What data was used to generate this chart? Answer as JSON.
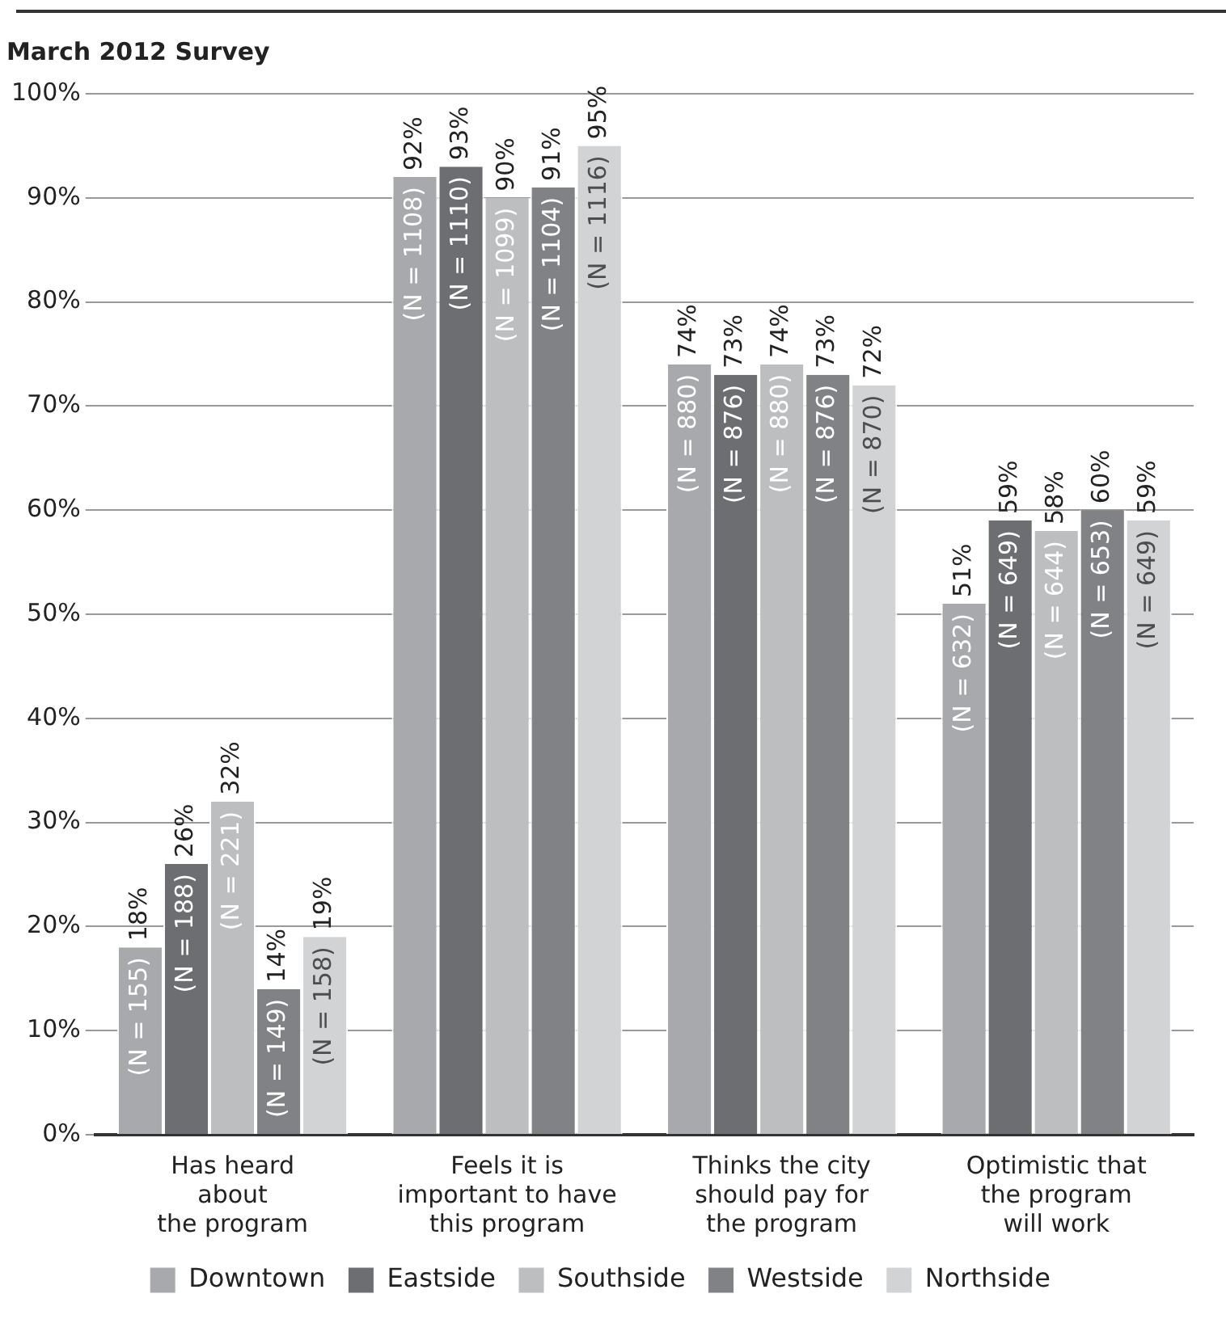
{
  "chart_data": {
    "type": "bar",
    "title": "March 2012 Survey",
    "categories": [
      "Has heard\nabout\nthe program",
      "Feels it is\nimportant to have\nthis program",
      "Thinks the city\nshould pay for\nthe program",
      "Optimistic that\nthe program\nwill work"
    ],
    "series": [
      {
        "name": "Downtown",
        "color": "#a7a9ac",
        "values": [
          18,
          92,
          74,
          51
        ],
        "value_labels": [
          "18%",
          "92%",
          "74%",
          "51%"
        ]
      },
      {
        "name": "Eastside",
        "color": "#6d6e71",
        "values": [
          26,
          93,
          73,
          59
        ],
        "value_labels": [
          "26%",
          "93%",
          "73%",
          "59%"
        ]
      },
      {
        "name": "Southside",
        "color": "#bcbec0",
        "values": [
          32,
          90,
          74,
          58
        ],
        "value_labels": [
          "32%",
          "90%",
          "74%",
          "58%"
        ]
      },
      {
        "name": "Westside",
        "color": "#808285",
        "values": [
          14,
          91,
          73,
          60
        ],
        "value_labels": [
          "14%",
          "91%",
          "73%",
          "60%"
        ]
      },
      {
        "name": "Northside",
        "color": "#d1d3d4",
        "values": [
          19,
          95,
          72,
          59
        ],
        "value_labels": [
          "19%",
          "95%",
          "72%",
          "59%"
        ]
      }
    ],
    "annotations": [
      "(N = 155)",
      "(N = 188)",
      "(N = 221)",
      "(N = 149)",
      "(N = 158)",
      "(N = 1108)",
      "(N = 1110)",
      "(N = 1099)",
      "(N = 1104)",
      "(N = 1116)",
      "(N = 880)",
      "(N = 876)",
      "(N = 880)",
      "(N = 876)",
      "(N = 870)",
      "(N = 632)",
      "(N = 649)",
      "(N = 644)",
      "(N = 653)",
      "(N = 649)"
    ],
    "ylim": [
      0,
      100
    ],
    "yticks": [
      {
        "value": 0,
        "label": "0%"
      },
      {
        "value": 10,
        "label": "10%"
      },
      {
        "value": 20,
        "label": "20%"
      },
      {
        "value": 30,
        "label": "30%"
      },
      {
        "value": 40,
        "label": "40%"
      },
      {
        "value": 50,
        "label": "50%"
      },
      {
        "value": 60,
        "label": "60%"
      },
      {
        "value": 70,
        "label": "70%"
      },
      {
        "value": 80,
        "label": "80%"
      },
      {
        "value": 90,
        "label": "90%"
      },
      {
        "value": 100,
        "label": "100%"
      }
    ],
    "grid": "y",
    "legend": "bottom"
  }
}
